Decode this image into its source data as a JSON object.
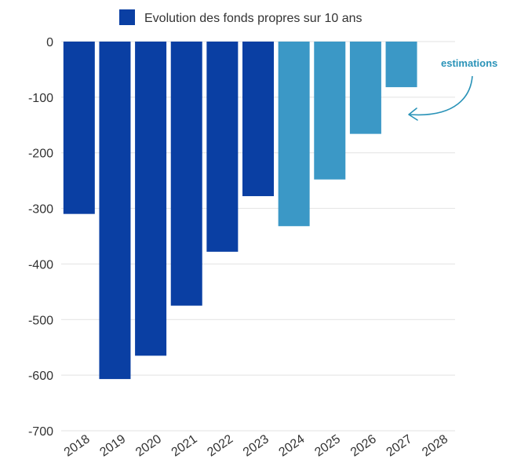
{
  "chart_data": {
    "type": "bar",
    "categories": [
      "2018",
      "2019",
      "2020",
      "2021",
      "2022",
      "2023",
      "2024",
      "2025",
      "2026",
      "2027",
      "2028"
    ],
    "series": [
      {
        "name": "Evolution des fonds propres sur 10 ans",
        "values": [
          -310,
          -607,
          -565,
          -475,
          -378,
          -278,
          -332,
          -248,
          -166,
          -82,
          null
        ]
      }
    ],
    "estimated_from": "2024",
    "ylim": [
      -700,
      0
    ],
    "yticks": [
      0,
      -100,
      -200,
      -300,
      -400,
      -500,
      -600,
      -700
    ],
    "grid": true,
    "legend_position": "top",
    "annotation": "estimations",
    "colors": {
      "actual": "#0a3fa3",
      "estimated": "#3b98c6",
      "grid": "#e2e2e2",
      "annotation": "#2a93b8"
    }
  }
}
